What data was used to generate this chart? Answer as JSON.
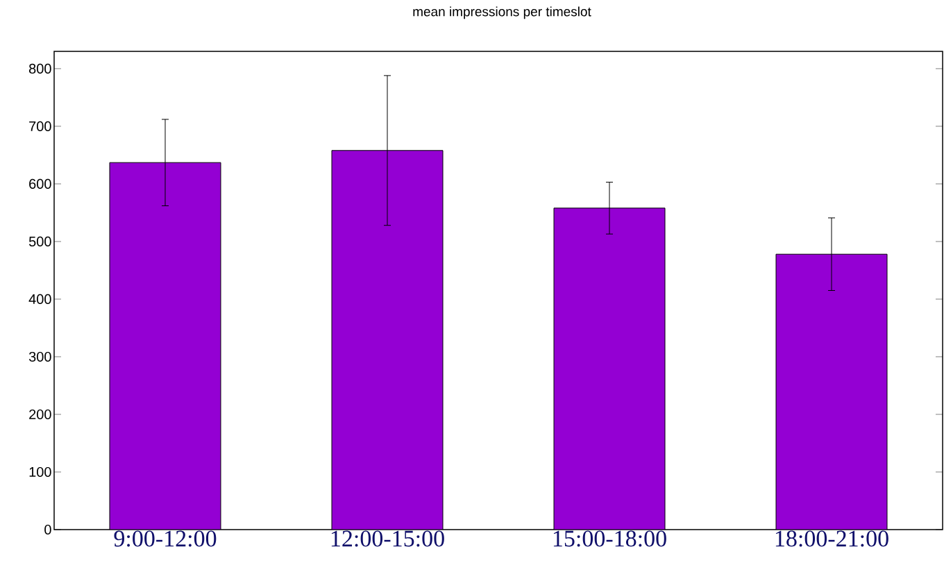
{
  "chart_data": {
    "type": "bar",
    "title": "mean impressions per timeslot",
    "categories": [
      "9:00-12:00",
      "12:00-15:00",
      "15:00-18:00",
      "18:00-21:00"
    ],
    "values": [
      637,
      658,
      558,
      478
    ],
    "errors": [
      75,
      130,
      45,
      63
    ],
    "color": "#9400d3",
    "ylim": [
      0,
      830
    ],
    "yticks": [
      0,
      100,
      200,
      300,
      400,
      500,
      600,
      700,
      800
    ],
    "grid": false
  }
}
